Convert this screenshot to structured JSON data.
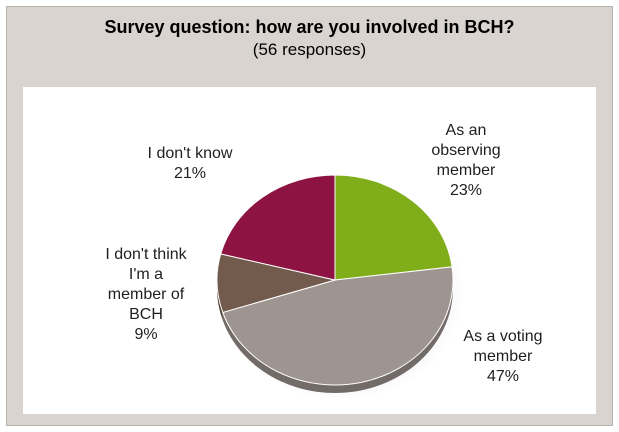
{
  "header": {
    "title": "Survey question: how are you involved in BCH?",
    "subtitle": "(56 responses)"
  },
  "chart_data": {
    "type": "pie",
    "title": "Survey question: how are you involved in BCH?",
    "subtitle": "(56 responses)",
    "slices": [
      {
        "label": "As an observing member",
        "value": 23,
        "display": "23%",
        "color": "#7fae1a"
      },
      {
        "label": "As a voting member",
        "value": 47,
        "display": "47%",
        "color": "#9f9590"
      },
      {
        "label": "I don't think I'm a member of BCH",
        "value": 9,
        "display": "9%",
        "color": "#725a4c"
      },
      {
        "label": "I don't know",
        "value": 21,
        "display": "21%",
        "color": "#8d1343"
      }
    ],
    "legend": "none",
    "data_labels": "outside"
  },
  "labels": {
    "observing": {
      "lines": [
        "As an",
        "observing",
        "member"
      ],
      "pct": "23%"
    },
    "voting": {
      "lines": [
        "As a voting",
        "member"
      ],
      "pct": "47%"
    },
    "notmember": {
      "lines": [
        "I don't think",
        "I'm a",
        "member of",
        "BCH"
      ],
      "pct": "9%"
    },
    "dontknow": {
      "lines": [
        "I don't know"
      ],
      "pct": "21%"
    }
  }
}
